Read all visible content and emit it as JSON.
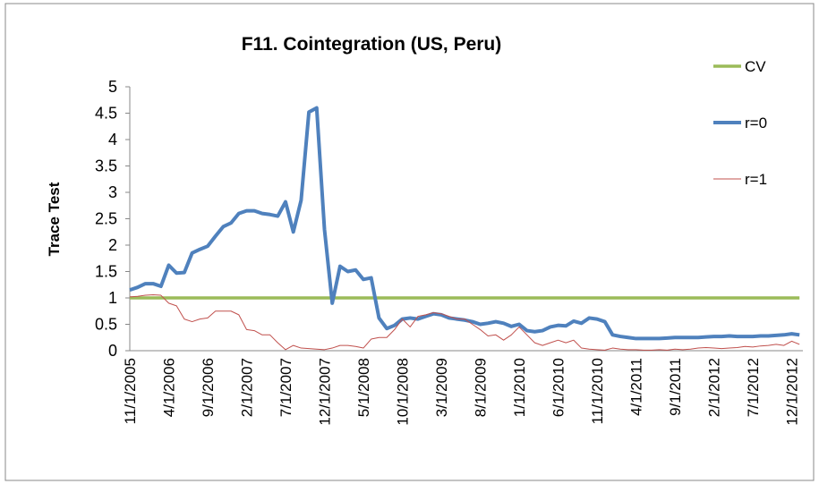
{
  "chart_data": {
    "type": "line",
    "title": "F11. Cointegration (US, Peru)",
    "y_label": "Trace Test",
    "categories": [
      "11/1/2005",
      null,
      null,
      null,
      null,
      "4/1/2006",
      null,
      null,
      null,
      null,
      "9/1/2006",
      null,
      null,
      null,
      null,
      "2/1/2007",
      null,
      null,
      null,
      null,
      "7/1/2007",
      null,
      null,
      null,
      null,
      "12/1/2007",
      null,
      null,
      null,
      null,
      "5/1/2008",
      null,
      null,
      null,
      null,
      "10/1/2008",
      null,
      null,
      null,
      null,
      "3/1/2009",
      null,
      null,
      null,
      null,
      "8/1/2009",
      null,
      null,
      null,
      null,
      "1/1/2010",
      null,
      null,
      null,
      null,
      "6/1/2010",
      null,
      null,
      null,
      null,
      "11/1/2010",
      null,
      null,
      null,
      null,
      "4/1/2011",
      null,
      null,
      null,
      null,
      "9/1/2011",
      null,
      null,
      null,
      null,
      "2/1/2012",
      null,
      null,
      null,
      null,
      "7/1/2012",
      null,
      null,
      null,
      null,
      "12/1/2012",
      null
    ],
    "series": [
      {
        "name": "CV",
        "color": "#9bbb59",
        "values": [
          1,
          1,
          1,
          1,
          1,
          1,
          1,
          1,
          1,
          1,
          1,
          1,
          1,
          1,
          1,
          1,
          1,
          1,
          1,
          1,
          1,
          1,
          1,
          1,
          1,
          1,
          1,
          1,
          1,
          1,
          1,
          1,
          1,
          1,
          1,
          1,
          1,
          1,
          1,
          1,
          1,
          1,
          1,
          1,
          1,
          1,
          1,
          1,
          1,
          1,
          1,
          1,
          1,
          1,
          1,
          1,
          1,
          1,
          1,
          1,
          1,
          1,
          1,
          1,
          1,
          1,
          1,
          1,
          1,
          1,
          1,
          1,
          1,
          1,
          1,
          1,
          1,
          1,
          1,
          1,
          1,
          1,
          1,
          1,
          1,
          1,
          1
        ]
      },
      {
        "name": "r=0",
        "color": "#4f81bd",
        "values": [
          1.15,
          1.2,
          1.27,
          1.27,
          1.22,
          1.62,
          1.47,
          1.48,
          1.85,
          1.92,
          1.98,
          2.17,
          2.35,
          2.42,
          2.6,
          2.65,
          2.65,
          2.6,
          2.58,
          2.55,
          2.82,
          2.25,
          2.85,
          4.52,
          4.6,
          2.3,
          0.9,
          1.6,
          1.5,
          1.53,
          1.35,
          1.38,
          0.62,
          0.42,
          0.48,
          0.6,
          0.62,
          0.6,
          0.65,
          0.7,
          0.68,
          0.62,
          0.6,
          0.58,
          0.55,
          0.5,
          0.52,
          0.55,
          0.52,
          0.46,
          0.5,
          0.38,
          0.36,
          0.38,
          0.45,
          0.48,
          0.47,
          0.56,
          0.52,
          0.62,
          0.6,
          0.55,
          0.3,
          0.27,
          0.25,
          0.23,
          0.23,
          0.23,
          0.23,
          0.24,
          0.25,
          0.25,
          0.25,
          0.25,
          0.26,
          0.27,
          0.27,
          0.28,
          0.27,
          0.27,
          0.27,
          0.28,
          0.28,
          0.29,
          0.3,
          0.32,
          0.3
        ]
      },
      {
        "name": "r=1",
        "color": "#c0504d",
        "values": [
          1.02,
          1.03,
          1.05,
          1.06,
          1.05,
          0.9,
          0.85,
          0.6,
          0.55,
          0.6,
          0.62,
          0.75,
          0.75,
          0.75,
          0.68,
          0.4,
          0.38,
          0.3,
          0.3,
          0.15,
          0.02,
          0.1,
          0.05,
          0.04,
          0.03,
          0.02,
          0.05,
          0.1,
          0.1,
          0.08,
          0.05,
          0.22,
          0.25,
          0.25,
          0.4,
          0.6,
          0.45,
          0.65,
          0.68,
          0.72,
          0.7,
          0.65,
          0.6,
          0.6,
          0.5,
          0.4,
          0.28,
          0.3,
          0.2,
          0.3,
          0.45,
          0.3,
          0.15,
          0.1,
          0.15,
          0.2,
          0.15,
          0.2,
          0.05,
          0.03,
          0.02,
          0.01,
          0.05,
          0.03,
          0.02,
          0.02,
          0.01,
          0.01,
          0.02,
          0.01,
          0.03,
          0.02,
          0.03,
          0.05,
          0.06,
          0.05,
          0.04,
          0.05,
          0.06,
          0.08,
          0.07,
          0.09,
          0.1,
          0.12,
          0.1,
          0.18,
          0.12
        ]
      }
    ],
    "ylim": [
      0,
      5
    ],
    "yticks": [
      0,
      0.5,
      1,
      1.5,
      2,
      2.5,
      3,
      3.5,
      4,
      4.5,
      5
    ],
    "legend": "right"
  }
}
